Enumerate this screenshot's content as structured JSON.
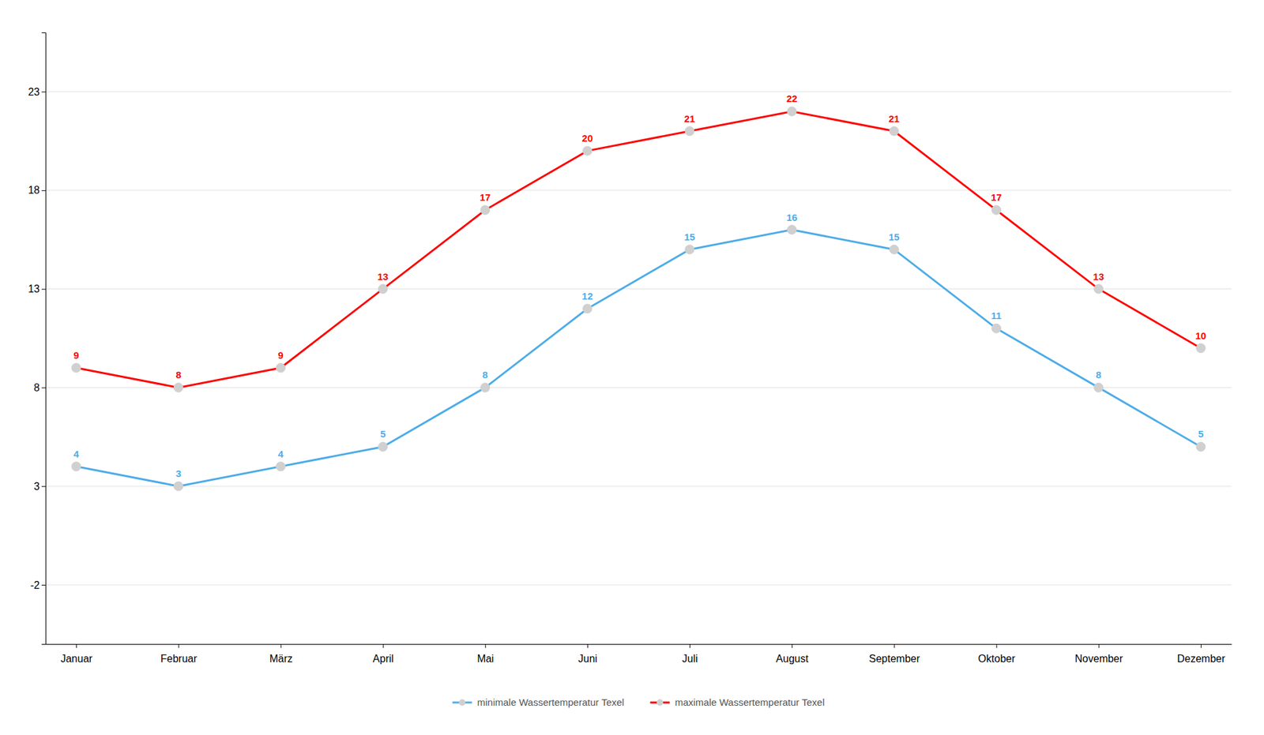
{
  "chart_data": {
    "type": "line",
    "categories": [
      "Januar",
      "Februar",
      "März",
      "April",
      "Mai",
      "Juni",
      "Juli",
      "August",
      "September",
      "Oktober",
      "November",
      "Dezember"
    ],
    "series": [
      {
        "name": "minimale Wassertemperatur Texel",
        "color": "#4DACE8",
        "values": [
          4,
          3,
          4,
          5,
          8,
          12,
          15,
          16,
          15,
          11,
          8,
          5
        ]
      },
      {
        "name": "maximale Wassertemperatur Texel",
        "color": "#FF0000",
        "values": [
          9,
          8,
          9,
          13,
          17,
          20,
          21,
          22,
          21,
          17,
          13,
          10
        ]
      }
    ],
    "ylim": [
      -5,
      26
    ],
    "yticks": [
      -2,
      3,
      8,
      13,
      18,
      23
    ],
    "grid": true,
    "legend": "bottom",
    "marker": "circle",
    "data_labels": true
  }
}
